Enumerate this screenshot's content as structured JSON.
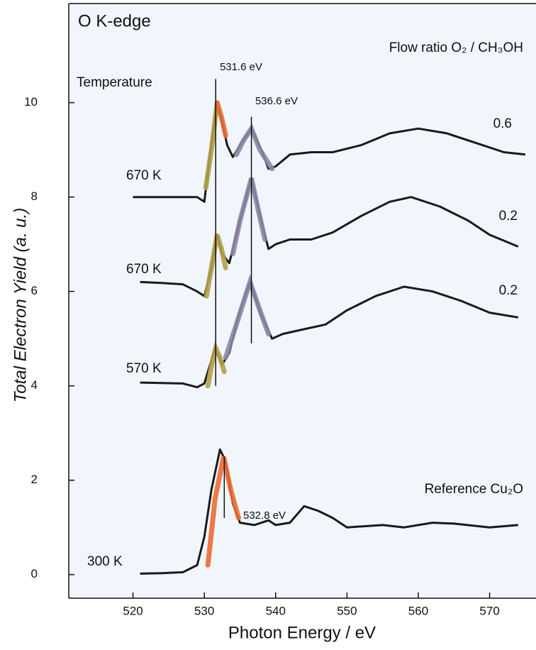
{
  "chart_data": {
    "type": "line",
    "title": "O K-edge",
    "x_label": "Photon Energy / eV",
    "y_label": "Total Electron Yield (a. u.)",
    "temperature_heading": "Temperature",
    "ratio_heading": "Flow ratio O₂ / CH₃OH",
    "xlim": [
      511,
      576.5
    ],
    "ylim": [
      -0.5,
      12.1
    ],
    "xticks": [
      520,
      530,
      540,
      550,
      560,
      570
    ],
    "yticks": [
      0,
      2,
      4,
      6,
      8,
      10
    ],
    "series": [
      {
        "color": "#1a1a1a",
        "temperature": "670 K",
        "ratio": "0.6",
        "x": [
          520,
          523,
          526,
          529,
          530,
          530.8,
          531.8,
          532.5,
          533.2,
          534,
          535,
          536.6,
          538,
          539,
          540,
          542,
          545,
          548,
          552,
          556,
          560,
          564,
          568,
          572,
          575
        ],
        "values": [
          8.0,
          8.0,
          8.0,
          8.0,
          7.9,
          8.9,
          10.0,
          9.6,
          9.1,
          8.85,
          9.1,
          9.45,
          9.0,
          8.6,
          8.65,
          8.9,
          8.95,
          8.95,
          9.1,
          9.35,
          9.45,
          9.35,
          9.15,
          8.95,
          8.9
        ]
      },
      {
        "color": "#1a1a1a",
        "temperature": "670 K",
        "ratio": "0.2",
        "x": [
          521,
          524,
          527,
          529,
          530,
          531,
          531.8,
          532.5,
          533.5,
          535,
          536.6,
          538,
          539,
          540,
          542,
          545,
          548,
          552,
          556,
          559,
          563,
          567,
          570,
          574
        ],
        "values": [
          6.2,
          6.18,
          6.15,
          6.0,
          5.9,
          6.5,
          7.2,
          6.8,
          6.6,
          7.5,
          8.4,
          7.5,
          6.9,
          7.0,
          7.1,
          7.1,
          7.25,
          7.6,
          7.9,
          8.0,
          7.8,
          7.5,
          7.2,
          6.95
        ]
      },
      {
        "color": "#1a1a1a",
        "temperature": "570 K",
        "ratio": "0.2",
        "x": [
          521,
          524,
          527,
          529,
          530,
          531.5,
          532.5,
          533.5,
          535,
          536.4,
          538,
          539.5,
          541,
          544,
          547,
          550,
          554,
          558,
          562,
          566,
          570,
          574
        ],
        "values": [
          4.07,
          4.06,
          4.05,
          3.97,
          4.05,
          4.8,
          4.45,
          4.7,
          5.6,
          6.2,
          5.5,
          5.0,
          5.1,
          5.2,
          5.3,
          5.6,
          5.9,
          6.1,
          6.0,
          5.8,
          5.55,
          5.45
        ]
      },
      {
        "color": "#1a1a1a",
        "temperature": "300 K",
        "ratio": "Reference Cu₂O",
        "x": [
          521,
          524,
          527,
          529,
          530,
          531,
          532.2,
          533,
          534,
          535,
          537,
          539,
          540,
          542,
          544,
          546,
          548,
          550,
          555,
          558,
          562,
          565,
          570,
          574
        ],
        "values": [
          0.02,
          0.03,
          0.05,
          0.2,
          0.8,
          1.8,
          2.65,
          2.4,
          1.5,
          1.1,
          1.05,
          1.15,
          1.05,
          1.1,
          1.45,
          1.35,
          1.2,
          1.0,
          1.05,
          1.0,
          1.1,
          1.08,
          1.0,
          1.05
        ]
      }
    ],
    "fits": [
      {
        "color": "#b5a04a",
        "x": [
          530.2,
          531,
          531.8
        ],
        "values": [
          8.2,
          9.0,
          10.0
        ]
      },
      {
        "color": "#ec6b35",
        "x": [
          531.8,
          532.4,
          533
        ],
        "values": [
          10.0,
          9.7,
          9.3
        ]
      },
      {
        "color": "#8c87a6",
        "x": [
          534.5,
          535.5,
          536.6,
          537.8,
          539.5
        ],
        "values": [
          8.9,
          9.2,
          9.45,
          9.0,
          8.6
        ]
      },
      {
        "color": "#b5a04a",
        "x": [
          530.3,
          531,
          531.8,
          532.4,
          533
        ],
        "values": [
          5.9,
          6.5,
          7.2,
          6.9,
          6.5
        ]
      },
      {
        "color": "#8c87a6",
        "x": [
          534,
          535,
          536.6,
          537.6,
          538.5
        ],
        "values": [
          6.8,
          7.5,
          8.4,
          7.7,
          7.1
        ]
      },
      {
        "color": "#b5a04a",
        "x": [
          530.5,
          531.1,
          531.6,
          532.2,
          532.8
        ],
        "values": [
          4.0,
          4.5,
          4.8,
          4.6,
          4.3
        ]
      },
      {
        "color": "#8c87a6",
        "x": [
          533,
          534.5,
          536.4,
          537.8,
          539
        ],
        "values": [
          4.6,
          5.3,
          6.2,
          5.6,
          5.1
        ]
      },
      {
        "color": "#ec6b35",
        "x": [
          530.5,
          531.5,
          532.7,
          533.7,
          534.8
        ],
        "values": [
          0.2,
          1.6,
          2.5,
          1.8,
          1.2
        ]
      }
    ],
    "markers": [
      {
        "x": 531.6,
        "label": "531.6 eV",
        "ymin": 4.0,
        "ymax": 10.5
      },
      {
        "x": 536.6,
        "label": "536.6 eV",
        "ymin": 4.9,
        "ymax": 9.7
      },
      {
        "x": 532.8,
        "label": "532.8 eV",
        "ymin": 1.2,
        "ymax": 2.5
      }
    ]
  }
}
